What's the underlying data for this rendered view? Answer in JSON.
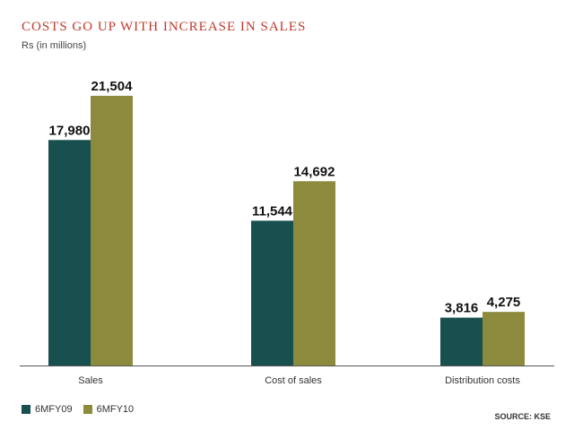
{
  "colors": {
    "title": "#c0392b",
    "series_1": "#17504f",
    "series_2": "#8b8a3d",
    "axis": "#555555"
  },
  "chart_data": {
    "type": "bar",
    "title": "COSTS GO UP WITH INCREASE IN SALES",
    "subtitle": "Rs (in millions)",
    "categories": [
      "Sales",
      "Cost of sales",
      "Distribution costs"
    ],
    "series": [
      {
        "name": "6MFY09",
        "values": [
          17980,
          11544,
          3816
        ],
        "labels": [
          "17,980",
          "11,544",
          "3,816"
        ]
      },
      {
        "name": "6MFY10",
        "values": [
          21504,
          14692,
          4275
        ],
        "labels": [
          "21,504",
          "14,692",
          "4,275"
        ]
      }
    ],
    "ylim": [
      0,
      27000
    ],
    "grid": false,
    "legend_position": "bottom-left",
    "source": "SOURCE: KSE"
  }
}
